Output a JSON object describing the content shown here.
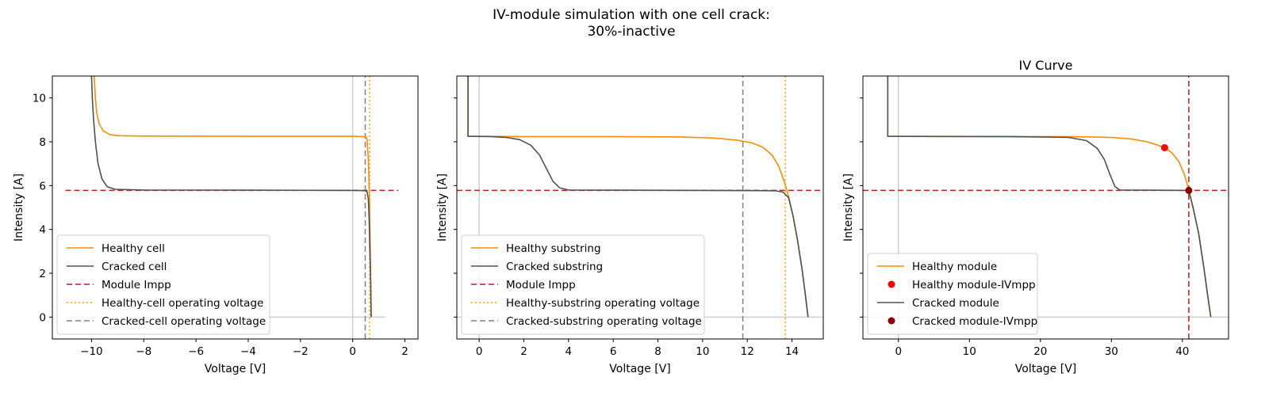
{
  "suptitle": [
    "IV-module simulation with one cell crack:",
    "30%-inactive"
  ],
  "colors": {
    "healthy": "#ff8c00",
    "cracked": "#505050",
    "impp": "#b22222",
    "healthy_op": "#ffa500",
    "cracked_op": "#808080",
    "healthy_mpp": "#ff0000",
    "cracked_mpp": "#8b0000",
    "zero_line": "#cfcfcf"
  },
  "chart_data": [
    {
      "type": "line",
      "title": "",
      "xlabel": "Voltage [V]",
      "ylabel": "Intensity [A]",
      "xlim": [
        -11.5,
        2.5
      ],
      "ylim": [
        -1,
        11
      ],
      "xticks": [
        -10,
        -8,
        -6,
        -4,
        -2,
        0,
        2
      ],
      "xtick_labels": [
        "−10",
        "−8",
        "−6",
        "−4",
        "−2",
        "0",
        "2"
      ],
      "yticks": [
        0,
        2,
        4,
        6,
        8,
        10
      ],
      "ytick_labels": [
        "0",
        "2",
        "4",
        "6",
        "8",
        "10"
      ],
      "show_ytick_labels": true,
      "zero_lines": {
        "x": [
          -11,
          1.25
        ],
        "y": [
          -1,
          11
        ]
      },
      "legend": "lower-left",
      "series": [
        {
          "name": "Healthy cell",
          "role": "healthy",
          "style": "solid",
          "points": [
            [
              -9.9,
              11
            ],
            [
              -9.85,
              10
            ],
            [
              -9.8,
              9.3
            ],
            [
              -9.7,
              8.8
            ],
            [
              -9.55,
              8.5
            ],
            [
              -9.3,
              8.33
            ],
            [
              -9,
              8.28
            ],
            [
              -8,
              8.26
            ],
            [
              -4,
              8.25
            ],
            [
              0,
              8.25
            ],
            [
              0.4,
              8.24
            ],
            [
              0.5,
              8.22
            ],
            [
              0.55,
              8.1
            ],
            [
              0.6,
              7.2
            ],
            [
              0.64,
              5.5
            ],
            [
              0.67,
              3.5
            ],
            [
              0.69,
              1.5
            ],
            [
              0.7,
              0
            ]
          ]
        },
        {
          "name": "Cracked cell",
          "role": "cracked",
          "style": "solid",
          "points": [
            [
              -10,
              11
            ],
            [
              -9.97,
              10
            ],
            [
              -9.92,
              9
            ],
            [
              -9.85,
              8
            ],
            [
              -9.75,
              7
            ],
            [
              -9.6,
              6.3
            ],
            [
              -9.4,
              5.95
            ],
            [
              -9.1,
              5.83
            ],
            [
              -8,
              5.8
            ],
            [
              -4,
              5.79
            ],
            [
              0,
              5.78
            ],
            [
              0.45,
              5.77
            ],
            [
              0.55,
              5.72
            ],
            [
              0.6,
              5.4
            ],
            [
              0.63,
              4.5
            ],
            [
              0.66,
              3
            ],
            [
              0.69,
              1.5
            ],
            [
              0.71,
              0
            ]
          ]
        },
        {
          "name": "Module Impp",
          "role": "impp",
          "style": "dashed",
          "orientation": "h",
          "value": 5.78,
          "extent": [
            -11,
            1.75
          ]
        },
        {
          "name": "Healthy-cell operating voltage",
          "role": "healthy_op",
          "style": "dotted",
          "orientation": "v",
          "value": 0.65
        },
        {
          "name": "Cracked-cell operating voltage",
          "role": "cracked_op",
          "style": "dashed",
          "orientation": "v",
          "value": 0.48
        }
      ]
    },
    {
      "type": "line",
      "title": "",
      "xlabel": "Voltage [V]",
      "ylabel": "Intensity [A]",
      "xlim": [
        -1,
        15.4
      ],
      "ylim": [
        -1,
        11
      ],
      "xticks": [
        0,
        2,
        4,
        6,
        8,
        10,
        12,
        14
      ],
      "xtick_labels": [
        "0",
        "2",
        "4",
        "6",
        "8",
        "10",
        "12",
        "14"
      ],
      "yticks": [
        0,
        2,
        4,
        6,
        8,
        10
      ],
      "ytick_labels": [
        "0",
        "2",
        "4",
        "6",
        "8",
        "10"
      ],
      "show_ytick_labels": false,
      "zero_lines": {
        "x": [
          -1,
          15.4
        ],
        "y": [
          -1,
          11
        ]
      },
      "legend": "lower-left",
      "series": [
        {
          "name": "Healthy substring",
          "role": "healthy",
          "style": "solid",
          "points": [
            [
              -0.5,
              11
            ],
            [
              -0.5,
              8.25
            ],
            [
              2,
              8.24
            ],
            [
              6,
              8.24
            ],
            [
              9,
              8.22
            ],
            [
              10.5,
              8.17
            ],
            [
              11.5,
              8.08
            ],
            [
              12.2,
              7.95
            ],
            [
              12.7,
              7.75
            ],
            [
              13.1,
              7.4
            ],
            [
              13.4,
              6.9
            ],
            [
              13.65,
              6.2
            ],
            [
              13.85,
              5.5
            ],
            [
              14.05,
              4.6
            ],
            [
              14.25,
              3.5
            ],
            [
              14.45,
              2.2
            ],
            [
              14.6,
              1
            ],
            [
              14.72,
              0
            ]
          ]
        },
        {
          "name": "Cracked substring",
          "role": "cracked",
          "style": "solid",
          "points": [
            [
              -0.5,
              11
            ],
            [
              -0.5,
              8.25
            ],
            [
              0.5,
              8.24
            ],
            [
              1.2,
              8.2
            ],
            [
              1.8,
              8.1
            ],
            [
              2.3,
              7.85
            ],
            [
              2.7,
              7.4
            ],
            [
              3.0,
              6.8
            ],
            [
              3.3,
              6.2
            ],
            [
              3.6,
              5.9
            ],
            [
              4.0,
              5.8
            ],
            [
              6,
              5.79
            ],
            [
              10,
              5.78
            ],
            [
              12.5,
              5.77
            ],
            [
              13.3,
              5.76
            ],
            [
              13.6,
              5.7
            ],
            [
              13.85,
              5.45
            ],
            [
              14.05,
              4.6
            ],
            [
              14.25,
              3.5
            ],
            [
              14.45,
              2.2
            ],
            [
              14.6,
              1
            ],
            [
              14.72,
              0
            ]
          ]
        },
        {
          "name": "Module Impp",
          "role": "impp",
          "style": "dashed",
          "orientation": "h",
          "value": 5.78
        },
        {
          "name": "Healthy-substring operating voltage",
          "role": "healthy_op",
          "style": "dotted",
          "orientation": "v",
          "value": 13.7
        },
        {
          "name": "Cracked-substring operating voltage",
          "role": "cracked_op",
          "style": "dashed",
          "orientation": "v",
          "value": 11.8
        }
      ]
    },
    {
      "type": "line",
      "title": "IV Curve",
      "xlabel": "Voltage [V]",
      "ylabel": "Intensity [A]",
      "xlim": [
        -5,
        46.5
      ],
      "ylim": [
        -1,
        11
      ],
      "xticks": [
        0,
        10,
        20,
        30,
        40
      ],
      "xtick_labels": [
        "0",
        "10",
        "20",
        "30",
        "40"
      ],
      "yticks": [
        0,
        2,
        4,
        6,
        8,
        10
      ],
      "ytick_labels": [
        "0",
        "2",
        "4",
        "6",
        "8",
        "10"
      ],
      "show_ytick_labels": false,
      "zero_lines": {
        "x": [
          -5,
          46.5
        ],
        "y": [
          -1,
          11
        ]
      },
      "legend": "lower-left",
      "series": [
        {
          "name": "Healthy module",
          "role": "healthy",
          "style": "solid",
          "points": [
            [
              -1.5,
              11
            ],
            [
              -1.5,
              8.25
            ],
            [
              10,
              8.24
            ],
            [
              25,
              8.23
            ],
            [
              30,
              8.2
            ],
            [
              33,
              8.12
            ],
            [
              35,
              8.0
            ],
            [
              36.5,
              7.85
            ],
            [
              37.5,
              7.73
            ],
            [
              38.5,
              7.5
            ],
            [
              39.5,
              7.1
            ],
            [
              40.3,
              6.5
            ],
            [
              40.9,
              5.78
            ],
            [
              41.5,
              5.0
            ],
            [
              42.3,
              3.8
            ],
            [
              43,
              2.3
            ],
            [
              43.6,
              0.9
            ],
            [
              44,
              0
            ]
          ]
        },
        {
          "name": "Healthy module-IVmpp",
          "role": "healthy_mpp",
          "style": "marker",
          "x": 37.5,
          "y": 7.73
        },
        {
          "name": "Cracked module",
          "role": "cracked",
          "style": "solid",
          "points": [
            [
              -1.5,
              11
            ],
            [
              -1.5,
              8.25
            ],
            [
              15,
              8.24
            ],
            [
              24,
              8.2
            ],
            [
              26.5,
              8.05
            ],
            [
              28,
              7.7
            ],
            [
              29,
              7.2
            ],
            [
              29.8,
              6.5
            ],
            [
              30.5,
              5.95
            ],
            [
              31.2,
              5.8
            ],
            [
              35,
              5.79
            ],
            [
              40.9,
              5.78
            ],
            [
              41.5,
              5.0
            ],
            [
              42.3,
              3.8
            ],
            [
              43,
              2.3
            ],
            [
              43.6,
              0.9
            ],
            [
              44,
              0
            ]
          ]
        },
        {
          "name": "Cracked module-IVmpp",
          "role": "cracked_mpp",
          "style": "marker",
          "x": 40.9,
          "y": 5.78
        },
        {
          "role": "impp",
          "style": "dashed",
          "orientation": "h",
          "value": 5.78
        },
        {
          "role": "impp",
          "style": "dashed",
          "orientation": "v",
          "value": 40.9
        }
      ]
    }
  ]
}
